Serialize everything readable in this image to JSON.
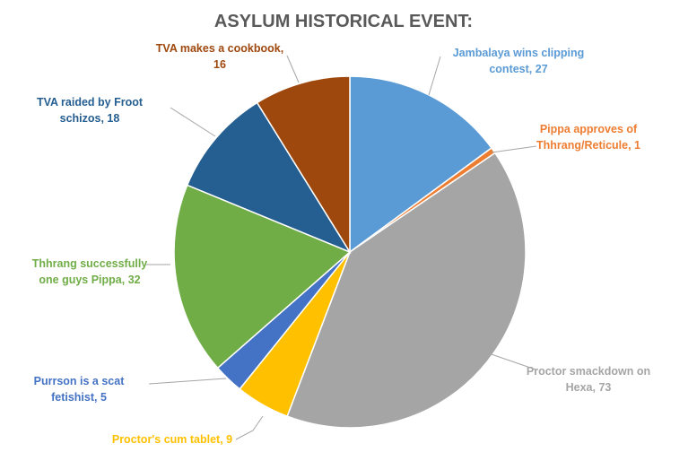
{
  "chart_data": {
    "type": "pie",
    "title": "ASYLUM HISTORICAL EVENT:",
    "slices": [
      {
        "label": "Jambalaya wins clipping contest",
        "value": 27,
        "color": "#5B9BD5",
        "label_lines": [
          "Jambalaya wins clipping",
          "contest, 27"
        ]
      },
      {
        "label": "Pippa approves of Thhrang/Reticule",
        "value": 1,
        "color": "#ED7D31",
        "label_lines": [
          "Pippa approves of",
          "Thhrang/Reticule, 1"
        ]
      },
      {
        "label": "Proctor smackdown on Hexa",
        "value": 73,
        "color": "#A5A5A5",
        "label_lines": [
          "Proctor smackdown on",
          "Hexa, 73"
        ]
      },
      {
        "label": "Proctor's cum tablet",
        "value": 9,
        "color": "#FFC000",
        "label_lines": [
          "Proctor's cum tablet, 9"
        ]
      },
      {
        "label": "Purrson is a scat fetishist",
        "value": 5,
        "color": "#4472C4",
        "label_lines": [
          "Purrson is a scat",
          "fetishist, 5"
        ]
      },
      {
        "label": "Thhrang successfully one guys Pippa",
        "value": 32,
        "color": "#70AD47",
        "label_lines": [
          "Thhrang successfully",
          "one guys Pippa, 32"
        ]
      },
      {
        "label": "TVA raided by Froot schizos",
        "value": 18,
        "color": "#255E91",
        "label_lines": [
          "TVA raided by Froot",
          "schizos, 18"
        ]
      },
      {
        "label": "TVA makes a cookbook",
        "value": 16,
        "color": "#9E480E",
        "label_lines": [
          "TVA makes a cookbook,",
          "16"
        ]
      }
    ],
    "start_angle": "12 o'clock",
    "direction": "clockwise",
    "legend": "none",
    "data_labels": "outside with leader lines"
  }
}
